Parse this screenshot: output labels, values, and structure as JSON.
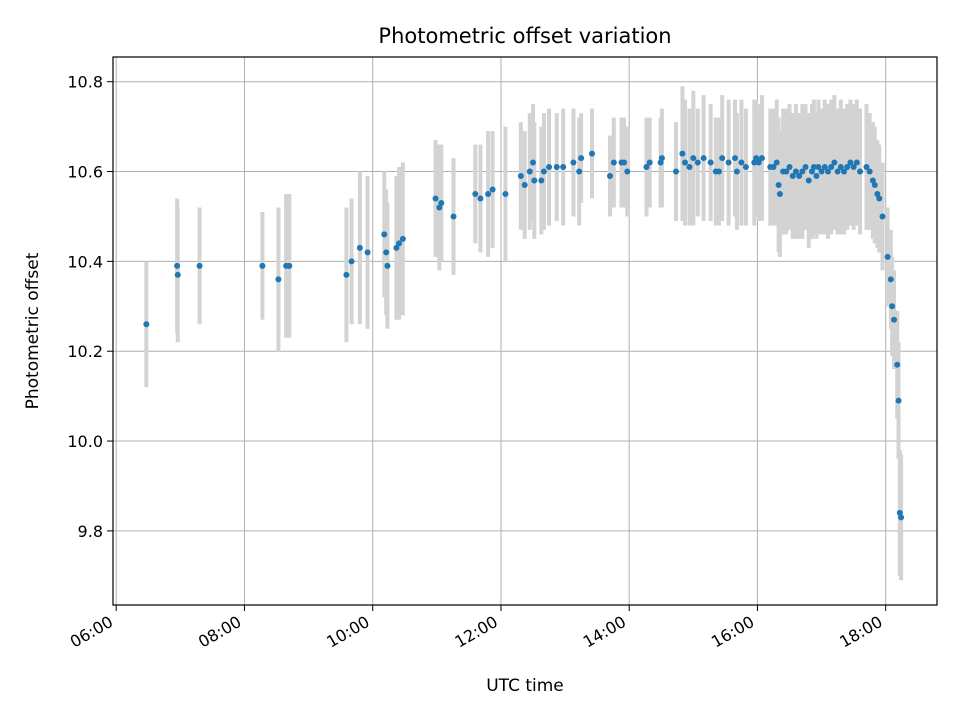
{
  "chart_data": {
    "type": "scatter",
    "title": "Photometric offset variation",
    "xlabel": "UTC time",
    "ylabel": "Photometric offset",
    "x_tick_labels": [
      "06:00",
      "08:00",
      "10:00",
      "12:00",
      "14:00",
      "16:00",
      "18:00"
    ],
    "x_tick_hours": [
      6,
      8,
      10,
      12,
      14,
      16,
      18
    ],
    "y_tick_labels": [
      "9.8",
      "10.0",
      "10.2",
      "10.4",
      "10.6",
      "10.8"
    ],
    "y_tick_values": [
      9.8,
      10.0,
      10.2,
      10.4,
      10.6,
      10.8
    ],
    "xlim_hours": [
      5.95,
      18.8
    ],
    "ylim": [
      9.635,
      10.855
    ],
    "grid": true,
    "point_color": "#1f77b4",
    "errorbar_color": "#d3d3d3",
    "series": [
      {
        "x_hours": [
          6.47,
          6.95,
          6.96,
          7.3,
          8.28,
          8.53,
          8.65,
          8.7,
          9.59,
          9.67,
          9.8,
          9.92,
          10.18,
          10.21,
          10.23,
          10.37,
          10.41,
          10.47,
          10.98,
          11.04,
          11.07,
          11.26,
          11.6,
          11.68,
          11.8,
          11.87,
          12.07,
          12.31,
          12.37,
          12.45,
          12.5,
          12.52,
          12.63,
          12.67,
          12.75,
          12.87,
          12.97,
          13.13,
          13.22,
          13.25,
          13.42,
          13.7,
          13.76,
          13.88,
          13.92,
          13.97,
          14.27,
          14.32,
          14.49,
          14.51,
          14.73,
          14.83,
          14.87,
          14.94,
          15.0,
          15.07,
          15.16,
          15.27,
          15.35,
          15.4,
          15.45,
          15.55,
          15.65,
          15.68,
          15.75,
          15.82,
          15.95,
          15.98,
          16.02,
          16.07,
          16.2,
          16.25,
          16.3,
          16.33,
          16.35,
          16.4,
          16.45,
          16.5,
          16.55,
          16.6,
          16.65,
          16.7,
          16.75,
          16.8,
          16.85,
          16.88,
          16.92,
          16.95,
          17.0,
          17.05,
          17.1,
          17.15,
          17.2,
          17.25,
          17.3,
          17.35,
          17.4,
          17.45,
          17.5,
          17.55,
          17.6,
          17.7,
          17.75,
          17.8,
          17.83,
          17.87,
          17.9,
          17.95,
          18.03,
          18.08,
          18.1,
          18.13,
          18.18,
          18.2,
          18.22,
          18.24
        ],
        "y": [
          10.26,
          10.39,
          10.37,
          10.39,
          10.39,
          10.36,
          10.39,
          10.39,
          10.37,
          10.4,
          10.43,
          10.42,
          10.46,
          10.42,
          10.39,
          10.43,
          10.44,
          10.45,
          10.54,
          10.52,
          10.53,
          10.5,
          10.55,
          10.54,
          10.55,
          10.56,
          10.55,
          10.59,
          10.57,
          10.6,
          10.62,
          10.58,
          10.58,
          10.6,
          10.61,
          10.61,
          10.61,
          10.62,
          10.6,
          10.63,
          10.64,
          10.59,
          10.62,
          10.62,
          10.62,
          10.6,
          10.61,
          10.62,
          10.62,
          10.63,
          10.6,
          10.64,
          10.62,
          10.61,
          10.63,
          10.62,
          10.63,
          10.62,
          10.6,
          10.6,
          10.63,
          10.62,
          10.63,
          10.6,
          10.62,
          10.61,
          10.62,
          10.63,
          10.62,
          10.63,
          10.61,
          10.61,
          10.62,
          10.57,
          10.55,
          10.6,
          10.6,
          10.61,
          10.59,
          10.6,
          10.59,
          10.6,
          10.61,
          10.58,
          10.6,
          10.61,
          10.59,
          10.61,
          10.6,
          10.61,
          10.6,
          10.61,
          10.62,
          10.6,
          10.61,
          10.6,
          10.61,
          10.62,
          10.61,
          10.62,
          10.6,
          10.61,
          10.6,
          10.58,
          10.57,
          10.55,
          10.54,
          10.5,
          10.41,
          10.36,
          10.3,
          10.27,
          10.17,
          10.09,
          9.84,
          9.83
        ],
        "err": [
          0.14,
          0.15,
          0.15,
          0.13,
          0.12,
          0.16,
          0.16,
          0.16,
          0.15,
          0.14,
          0.17,
          0.17,
          0.14,
          0.14,
          0.14,
          0.16,
          0.17,
          0.17,
          0.13,
          0.14,
          0.13,
          0.13,
          0.11,
          0.12,
          0.14,
          0.13,
          0.15,
          0.12,
          0.12,
          0.13,
          0.13,
          0.13,
          0.12,
          0.13,
          0.13,
          0.12,
          0.13,
          0.12,
          0.12,
          0.1,
          0.1,
          0.09,
          0.1,
          0.1,
          0.1,
          0.1,
          0.11,
          0.1,
          0.1,
          0.11,
          0.11,
          0.15,
          0.14,
          0.13,
          0.15,
          0.12,
          0.14,
          0.13,
          0.12,
          0.12,
          0.14,
          0.14,
          0.13,
          0.13,
          0.14,
          0.13,
          0.14,
          0.13,
          0.13,
          0.14,
          0.13,
          0.13,
          0.14,
          0.15,
          0.14,
          0.14,
          0.14,
          0.14,
          0.14,
          0.15,
          0.14,
          0.15,
          0.14,
          0.15,
          0.15,
          0.15,
          0.14,
          0.15,
          0.14,
          0.15,
          0.15,
          0.15,
          0.15,
          0.14,
          0.15,
          0.14,
          0.14,
          0.14,
          0.14,
          0.14,
          0.14,
          0.14,
          0.13,
          0.13,
          0.13,
          0.12,
          0.12,
          0.12,
          0.11,
          0.11,
          0.11,
          0.11,
          0.12,
          0.13,
          0.14,
          0.14
        ]
      }
    ]
  }
}
